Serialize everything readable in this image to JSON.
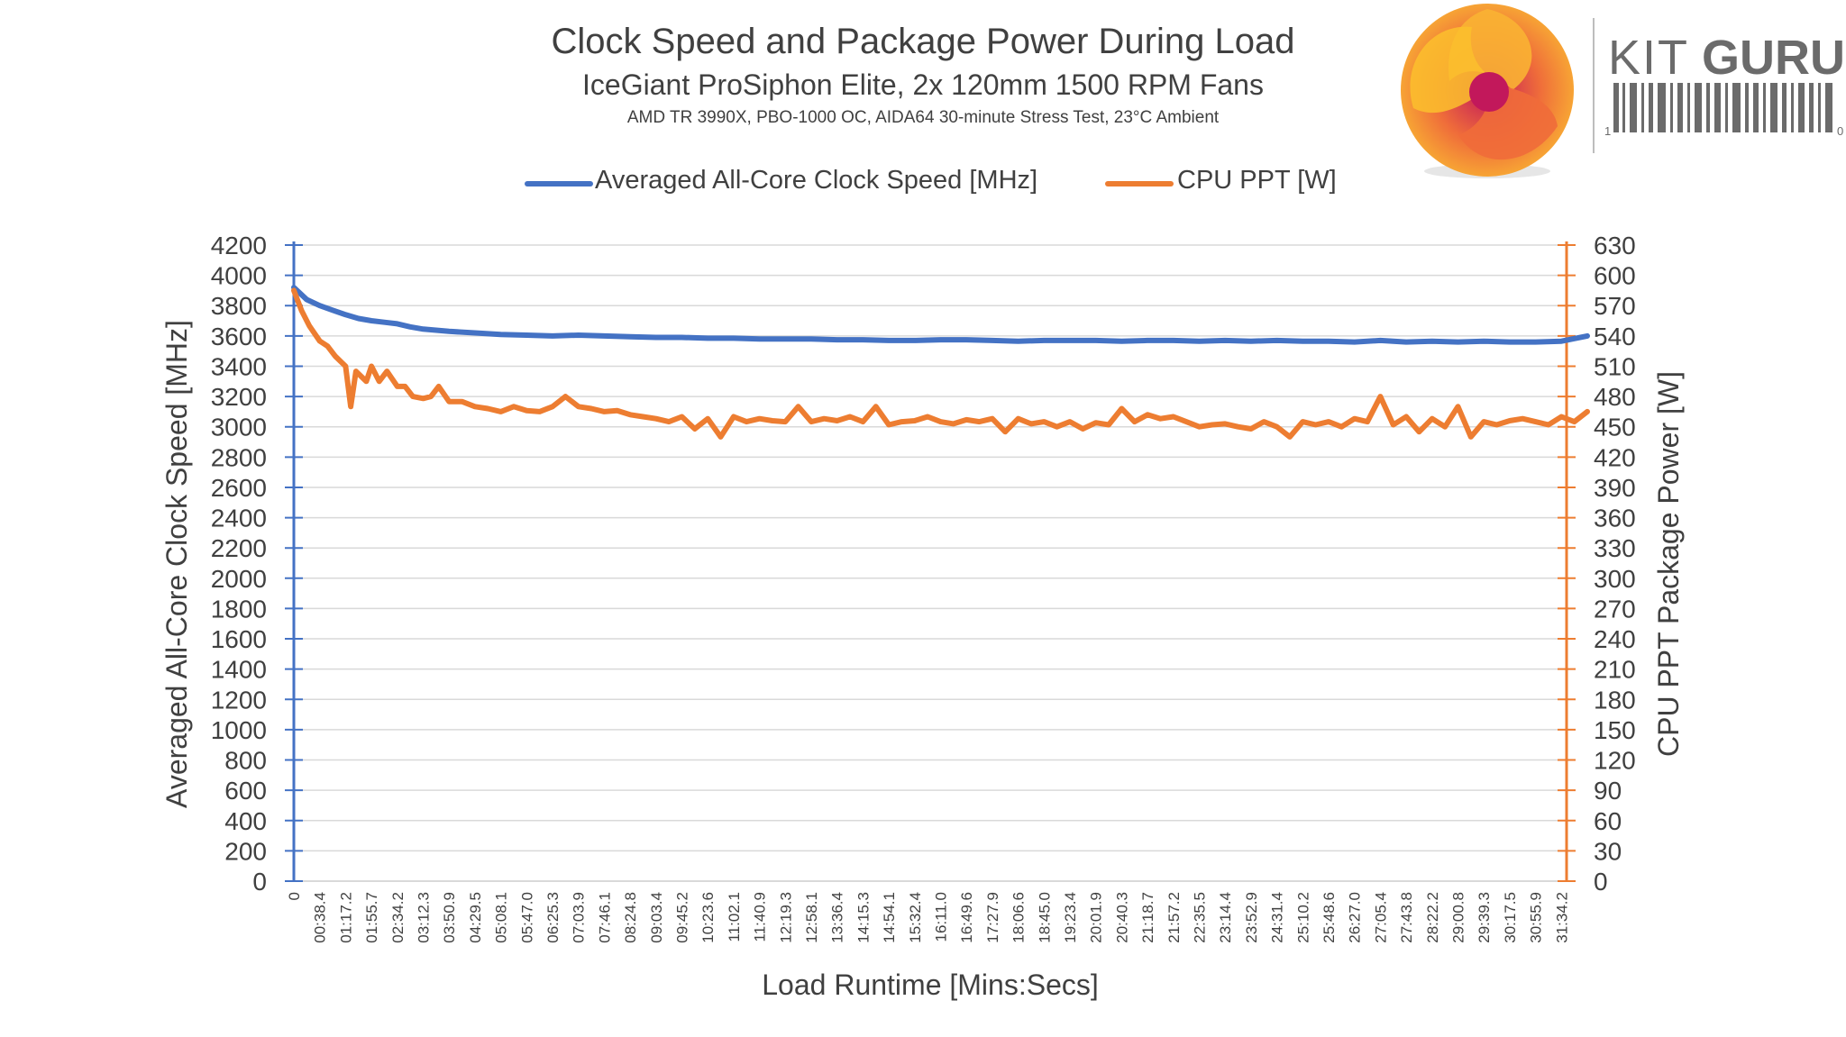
{
  "chart_data": {
    "type": "line",
    "title": "Clock Speed and Package Power During Load",
    "subtitle": "IceGiant ProSiphon Elite, 2x 120mm 1500 RPM Fans",
    "subsubtitle": "AMD TR 3990X, PBO-1000 OC, AIDA64 30-minute Stress Test, 23°C Ambient",
    "xlabel": "Load Runtime [Mins:Secs]",
    "ylabel_left": "Averaged All-Core Clock Speed [MHz]",
    "ylabel_right": "CPU PPT Package Power [W]",
    "ylim_left": [
      0,
      4200
    ],
    "ylim_right": [
      0,
      630
    ],
    "yticks_left": [
      "0",
      "200",
      "400",
      "600",
      "800",
      "1000",
      "1200",
      "1400",
      "1600",
      "1800",
      "2000",
      "2200",
      "2400",
      "2600",
      "2800",
      "3000",
      "3200",
      "3400",
      "3600",
      "3800",
      "4000",
      "4200"
    ],
    "yticks_right": [
      "0",
      "30",
      "60",
      "90",
      "120",
      "150",
      "180",
      "210",
      "240",
      "270",
      "300",
      "330",
      "360",
      "390",
      "420",
      "450",
      "480",
      "510",
      "540",
      "570",
      "600",
      "630"
    ],
    "x_ticks": [
      "0",
      "00:38.4",
      "01:17.2",
      "01:55.7",
      "02:34.2",
      "03:12.3",
      "03:50.9",
      "04:29.5",
      "05:08.1",
      "05:47.0",
      "06:25.3",
      "07:03.9",
      "07:46.1",
      "08:24.8",
      "09:03.4",
      "09:45.2",
      "10:23.6",
      "11:02.1",
      "11:40.9",
      "12:19.3",
      "12:58.1",
      "13:36.4",
      "14:15.3",
      "14:54.1",
      "15:32.4",
      "16:11.0",
      "16:49.6",
      "17:27.9",
      "18:06.6",
      "18:45.0",
      "19:23.4",
      "20:01.9",
      "20:40.3",
      "21:18.7",
      "21:57.2",
      "22:35.5",
      "23:14.4",
      "23:52.9",
      "24:31.4",
      "25:10.2",
      "25:48.6",
      "26:27.0",
      "27:05.4",
      "27:43.8",
      "28:22.2",
      "29:00.8",
      "29:39.3",
      "30:17.5",
      "30:55.9",
      "31:34.2"
    ],
    "series": [
      {
        "name": "Averaged All-Core Clock Speed [MHz]",
        "axis": "left",
        "color": "#4472C4",
        "x": [
          0,
          0.5,
          1,
          1.5,
          2,
          2.5,
          3,
          3.5,
          4,
          4.5,
          5,
          6,
          7,
          8,
          9,
          10,
          11,
          12,
          13,
          14,
          15,
          16,
          17,
          18,
          19,
          20,
          21,
          22,
          23,
          24,
          25,
          26,
          27,
          28,
          29,
          30,
          31,
          32,
          33,
          34,
          35,
          36,
          37,
          38,
          39,
          40,
          41,
          42,
          43,
          44,
          45,
          46,
          47,
          48,
          49,
          50
        ],
        "values": [
          3920,
          3840,
          3800,
          3770,
          3740,
          3715,
          3700,
          3690,
          3680,
          3660,
          3645,
          3630,
          3620,
          3610,
          3605,
          3600,
          3605,
          3600,
          3595,
          3590,
          3590,
          3585,
          3585,
          3580,
          3580,
          3580,
          3575,
          3575,
          3570,
          3570,
          3575,
          3575,
          3570,
          3565,
          3570,
          3570,
          3570,
          3565,
          3570,
          3570,
          3565,
          3570,
          3565,
          3570,
          3565,
          3565,
          3560,
          3570,
          3560,
          3565,
          3560,
          3565,
          3560,
          3560,
          3565,
          3600
        ]
      },
      {
        "name": "CPU PPT [W]",
        "axis": "right",
        "color": "#ED7D31",
        "x": [
          0,
          0.3,
          0.6,
          1,
          1.3,
          1.6,
          2,
          2.2,
          2.4,
          2.6,
          2.8,
          3,
          3.3,
          3.6,
          4,
          4.3,
          4.6,
          5,
          5.3,
          5.6,
          6,
          6.5,
          7,
          7.5,
          8,
          8.5,
          9,
          9.5,
          10,
          10.5,
          11,
          11.5,
          12,
          12.5,
          13,
          13.5,
          14,
          14.5,
          15,
          15.5,
          16,
          16.5,
          17,
          17.5,
          18,
          18.5,
          19,
          19.5,
          20,
          20.5,
          21,
          21.5,
          22,
          22.5,
          23,
          23.5,
          24,
          24.5,
          25,
          25.5,
          26,
          26.5,
          27,
          27.5,
          28,
          28.5,
          29,
          29.5,
          30,
          30.5,
          31,
          31.5,
          32,
          32.5,
          33,
          33.5,
          34,
          34.5,
          35,
          35.5,
          36,
          36.5,
          37,
          37.5,
          38,
          38.5,
          39,
          39.5,
          40,
          40.5,
          41,
          41.5,
          42,
          42.5,
          43,
          43.5,
          44,
          44.5,
          45,
          45.5,
          46,
          46.5,
          47,
          47.5,
          48,
          48.5,
          49,
          49.5,
          50
        ],
        "values": [
          585,
          565,
          550,
          535,
          530,
          520,
          510,
          470,
          505,
          500,
          495,
          510,
          495,
          505,
          490,
          490,
          480,
          478,
          480,
          490,
          475,
          475,
          470,
          468,
          465,
          470,
          466,
          465,
          470,
          480,
          470,
          468,
          465,
          466,
          462,
          460,
          458,
          455,
          460,
          448,
          458,
          440,
          460,
          455,
          458,
          456,
          455,
          470,
          455,
          458,
          456,
          460,
          455,
          470,
          452,
          455,
          456,
          460,
          455,
          453,
          457,
          455,
          458,
          445,
          458,
          453,
          455,
          450,
          455,
          448,
          454,
          452,
          468,
          455,
          462,
          458,
          460,
          455,
          450,
          452,
          453,
          450,
          448,
          455,
          450,
          440,
          455,
          452,
          455,
          450,
          458,
          455,
          480,
          452,
          460,
          445,
          458,
          450,
          470,
          440,
          455,
          452,
          456,
          458,
          455,
          452,
          460,
          455,
          465
        ]
      }
    ]
  },
  "logo": {
    "text_light": "KIT",
    "text_bold": "GURU",
    "barcode_left": "1",
    "barcode_right": "0"
  },
  "colors": {
    "clock": "#4472C4",
    "ppt": "#ED7D31",
    "grid": "#D9D9D9",
    "text": "#404040"
  }
}
